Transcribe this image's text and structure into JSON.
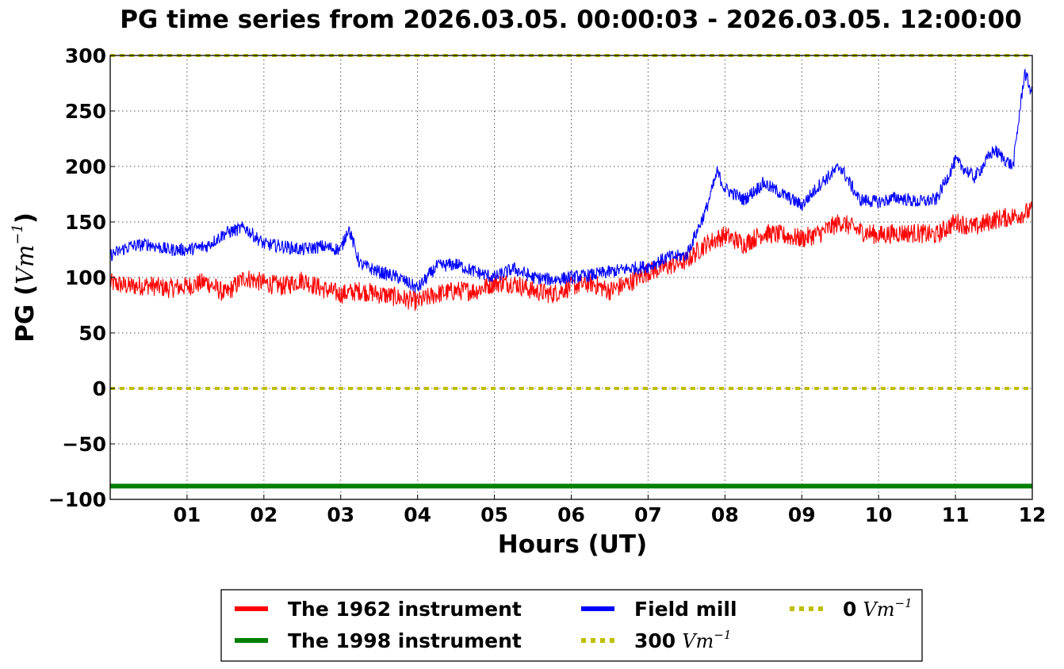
{
  "chart_data": {
    "type": "line",
    "title": "PG time series from 2026.03.05. 00:00:03 - 2026.03.05. 12:00:00",
    "xlabel": "Hours (UT)",
    "ylabel": "PG (",
    "ylabel_unit": "Vm",
    "ylabel_exp": "−1",
    "ylabel_close": ")",
    "xlim": [
      0,
      12
    ],
    "ylim": [
      -100,
      300
    ],
    "grid": true,
    "x_ticks": [
      1,
      2,
      3,
      4,
      5,
      6,
      7,
      8,
      9,
      10,
      11,
      12
    ],
    "x_tick_labels": [
      "01",
      "02",
      "03",
      "04",
      "05",
      "06",
      "07",
      "08",
      "09",
      "10",
      "11",
      "12"
    ],
    "y_ticks": [
      300,
      250,
      200,
      150,
      100,
      50,
      0,
      -50,
      -100
    ],
    "y_tick_labels": [
      "300",
      "250",
      "200",
      "150",
      "100",
      "50",
      "0",
      "−50",
      "−100"
    ],
    "legend_position": "bottom-center",
    "series": [
      {
        "name": "The 1962 instrument",
        "color": "#ff0000",
        "x": [
          0,
          0.25,
          0.5,
          0.75,
          1,
          1.25,
          1.5,
          1.75,
          2,
          2.25,
          2.5,
          2.75,
          3,
          3.25,
          3.5,
          3.75,
          4,
          4.25,
          4.5,
          4.75,
          5,
          5.25,
          5.5,
          5.75,
          6,
          6.25,
          6.5,
          6.75,
          7,
          7.25,
          7.5,
          7.75,
          8,
          8.25,
          8.5,
          8.75,
          9,
          9.25,
          9.5,
          9.75,
          10,
          10.25,
          10.5,
          10.75,
          11,
          11.25,
          11.5,
          11.75,
          12
        ],
        "y": [
          95,
          92,
          93,
          90,
          92,
          96,
          85,
          100,
          95,
          92,
          98,
          90,
          85,
          88,
          85,
          82,
          78,
          85,
          88,
          88,
          95,
          95,
          88,
          85,
          92,
          95,
          88,
          95,
          105,
          110,
          115,
          130,
          138,
          130,
          140,
          138,
          135,
          140,
          150,
          142,
          138,
          140,
          140,
          138,
          150,
          145,
          152,
          155,
          160
        ]
      },
      {
        "name": "The 1998 instrument",
        "color": "#008000",
        "x": [
          0,
          12
        ],
        "y": [
          -88,
          -88
        ]
      },
      {
        "name": "Field mill",
        "color": "#0000ff",
        "x": [
          0,
          0.25,
          0.5,
          0.75,
          1,
          1.25,
          1.5,
          1.75,
          2,
          2.25,
          2.5,
          2.75,
          3,
          3.1,
          3.25,
          3.5,
          3.75,
          4,
          4.25,
          4.5,
          4.75,
          5,
          5.25,
          5.5,
          5.75,
          6,
          6.25,
          6.5,
          6.75,
          7,
          7.25,
          7.5,
          7.75,
          7.9,
          8,
          8.25,
          8.5,
          8.75,
          9,
          9.25,
          9.5,
          9.75,
          10,
          10.25,
          10.5,
          10.75,
          11,
          11.25,
          11.5,
          11.75,
          11.9,
          12
        ],
        "y": [
          120,
          128,
          130,
          125,
          125,
          128,
          140,
          145,
          130,
          128,
          125,
          128,
          125,
          145,
          112,
          105,
          100,
          90,
          110,
          112,
          105,
          100,
          108,
          100,
          98,
          100,
          102,
          105,
          108,
          110,
          118,
          120,
          160,
          195,
          180,
          170,
          185,
          175,
          165,
          185,
          200,
          170,
          168,
          172,
          168,
          170,
          205,
          190,
          215,
          200,
          285,
          265
        ]
      },
      {
        "name": "300",
        "unit": "Vm",
        "exp": "−1",
        "color": "#bfbf00",
        "style": "dotted",
        "x": [
          0,
          12
        ],
        "y": [
          300,
          300
        ]
      },
      {
        "name": "0",
        "unit": "Vm",
        "exp": "−1",
        "color": "#bfbf00",
        "style": "dotted",
        "x": [
          0,
          12
        ],
        "y": [
          0,
          0
        ]
      }
    ]
  }
}
